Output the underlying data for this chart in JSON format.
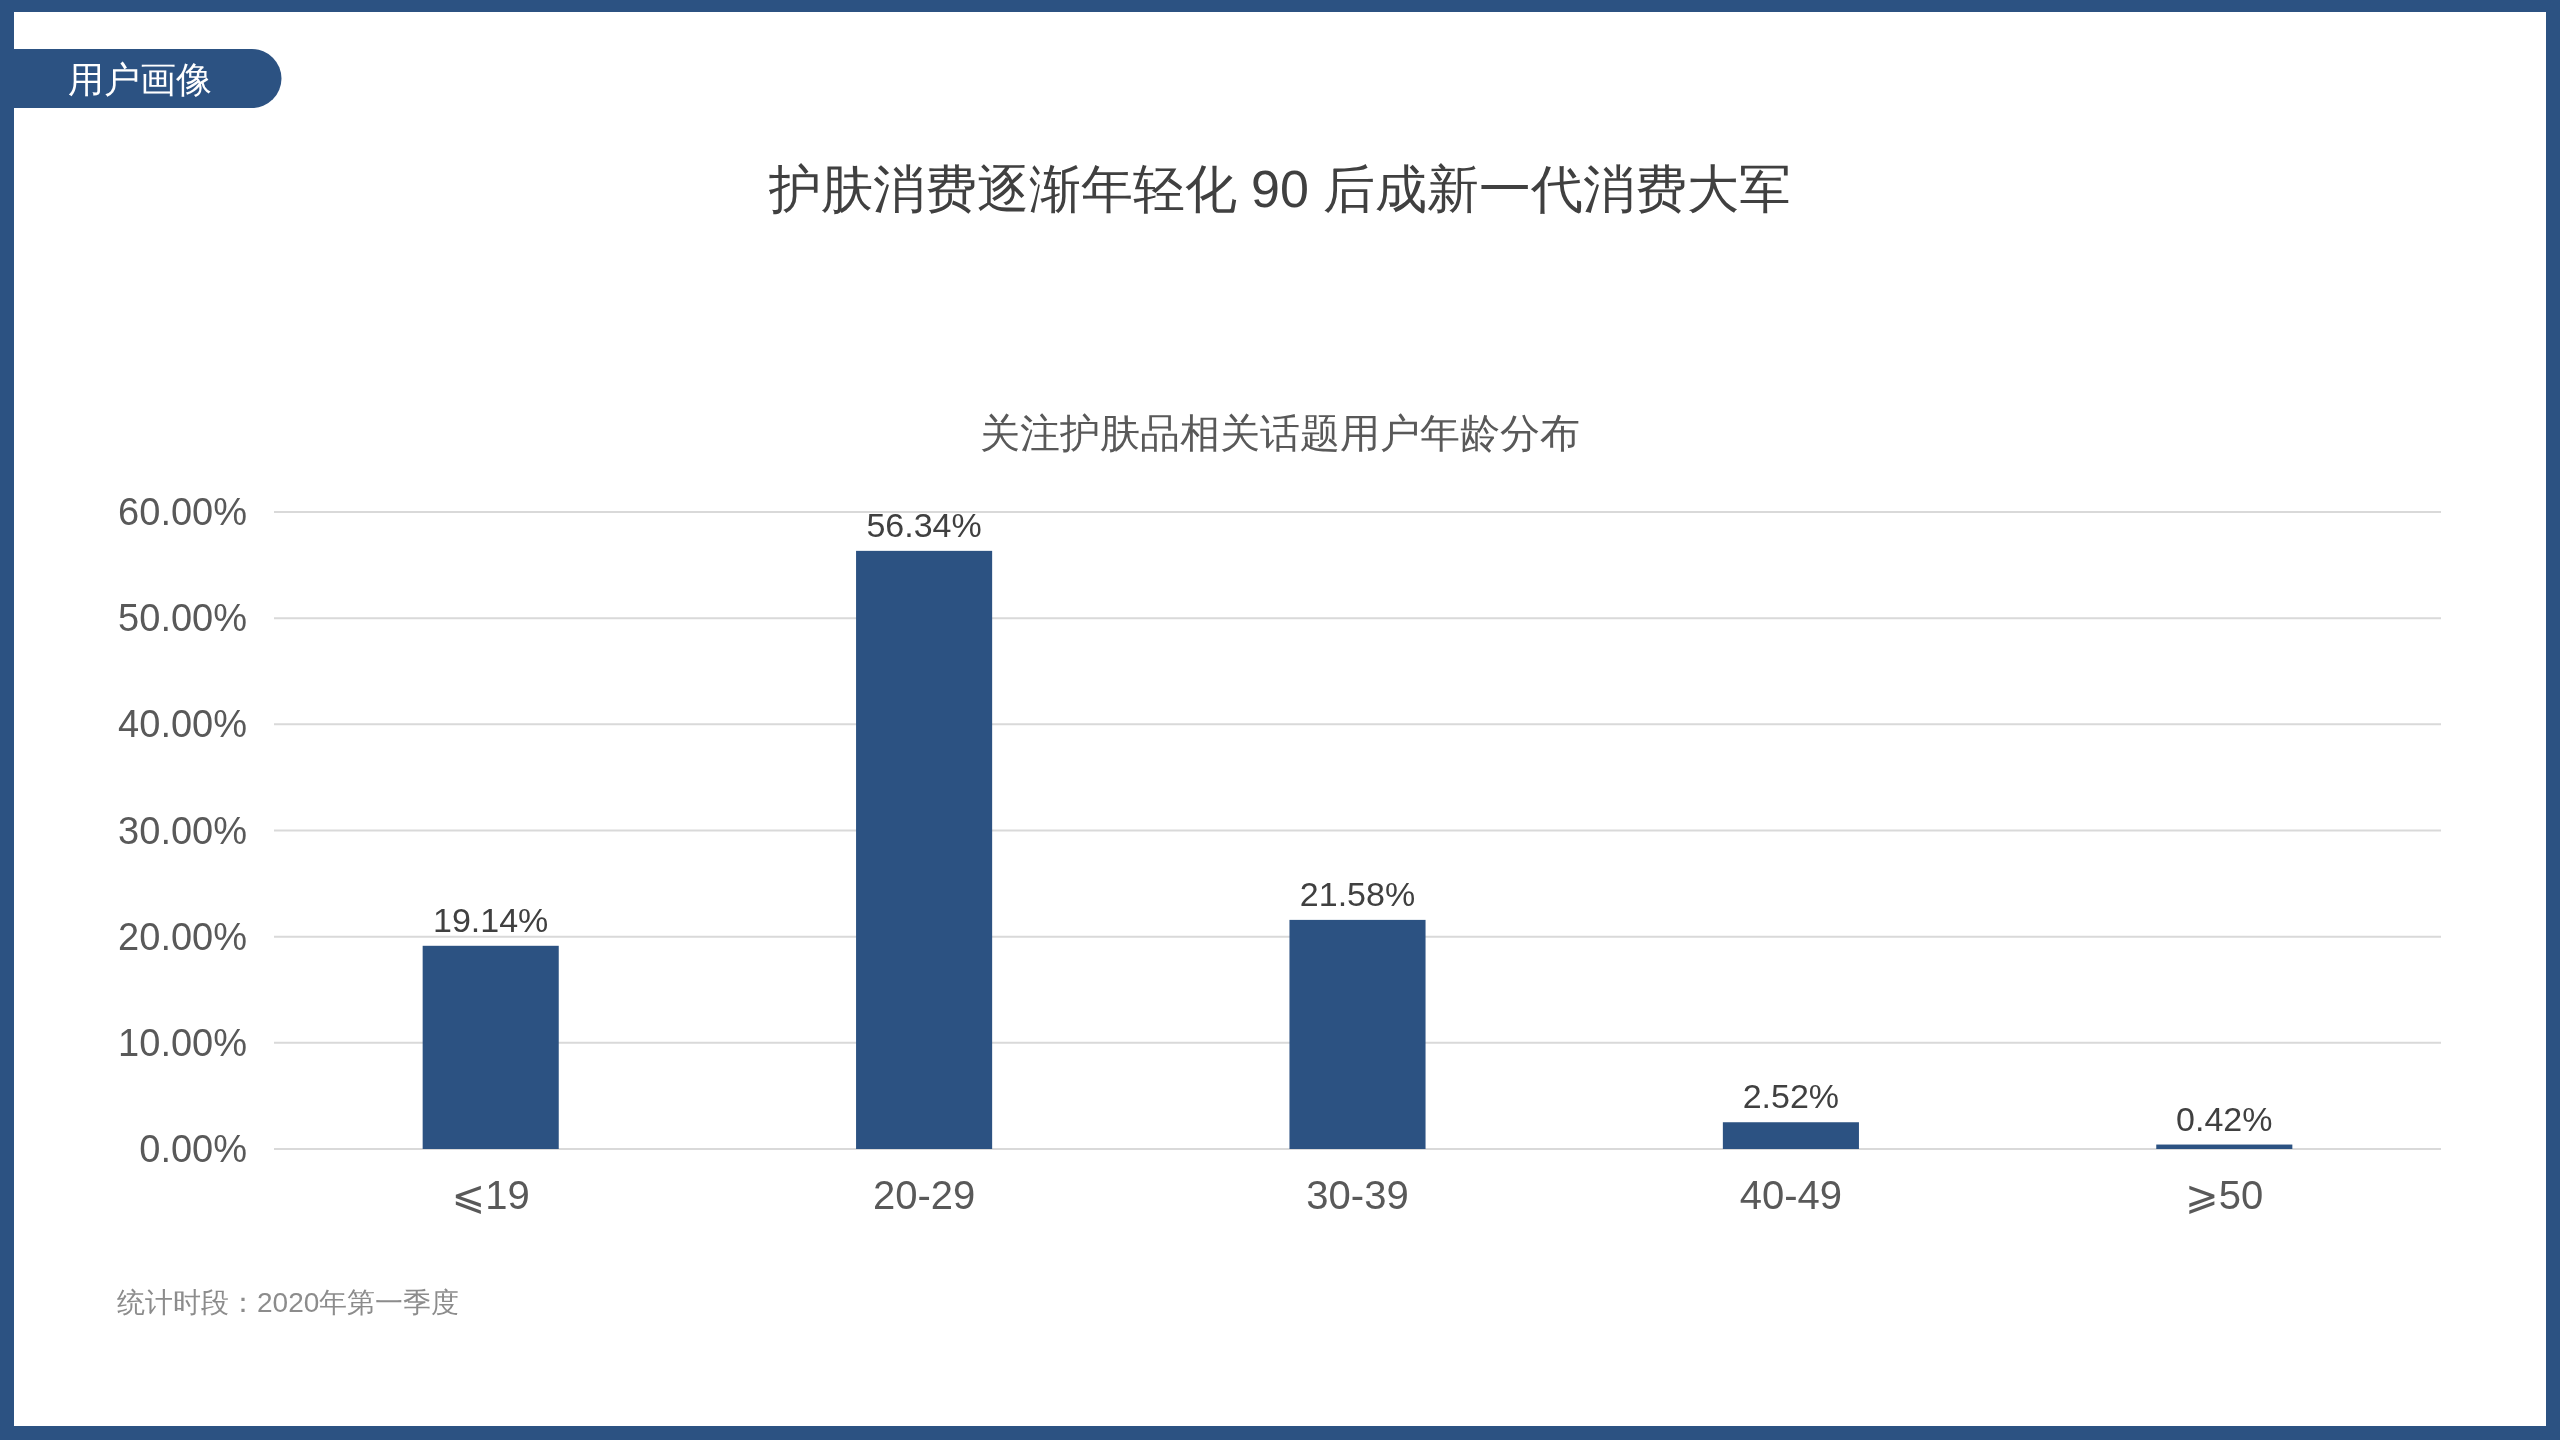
{
  "chart_data": {
    "type": "bar",
    "title": "护肤消费逐渐年轻化 90 后成新一代消费大军",
    "subtitle": "关注护肤品相关话题用户年龄分布",
    "annotations": [
      "用户画像",
      "统计时段：2020年第一季度"
    ],
    "categories": [
      "⩽19",
      "20-29",
      "30-39",
      "40-49",
      "⩾50"
    ],
    "values": [
      19.14,
      56.34,
      21.58,
      2.52,
      0.42
    ],
    "value_labels": [
      "19.14%",
      "56.34%",
      "21.58%",
      "2.52%",
      "0.42%"
    ],
    "color": "#2c5282",
    "ylim": [
      0,
      60
    ],
    "yticks": [
      {
        "value": 0,
        "label": "0.00%"
      },
      {
        "value": 10,
        "label": "10.00%"
      },
      {
        "value": 20,
        "label": "20.00%"
      },
      {
        "value": 30,
        "label": "30.00%"
      },
      {
        "value": 40,
        "label": "40.00%"
      },
      {
        "value": 50,
        "label": "50.00%"
      },
      {
        "value": 60,
        "label": "60.00%"
      }
    ],
    "grid": "y"
  }
}
